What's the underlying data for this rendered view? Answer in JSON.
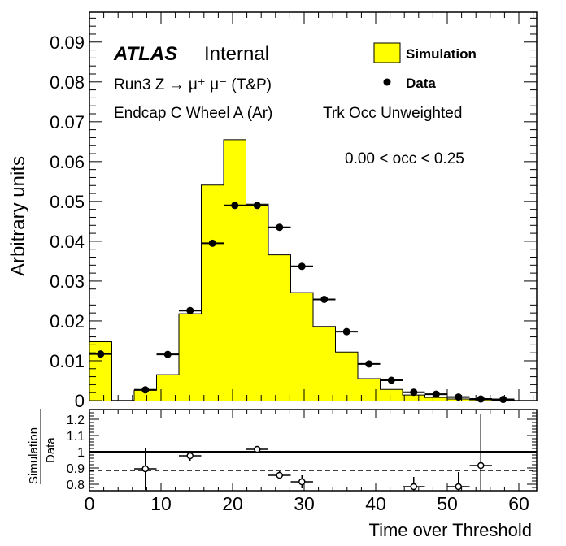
{
  "chart_data": [
    {
      "type": "bar",
      "title": "",
      "labels": {
        "atlas": "ATLAS",
        "internal": "Internal",
        "line1": "Run3 Z → μ⁺ μ⁻ (T&P)",
        "line2": "Endcap C Wheel A (Ar)",
        "line3": "Trk Occ Unweighted",
        "occ_range": "0.00 < occ < 0.25"
      },
      "ylabel": "Arbitrary units",
      "xlim": [
        0,
        62.5
      ],
      "ylim": [
        0,
        0.0975
      ],
      "yticks": [
        0,
        0.01,
        0.02,
        0.03,
        0.04,
        0.05,
        0.06,
        0.07,
        0.08,
        0.09
      ],
      "ytick_labels": [
        "0",
        "0.01",
        "0.02",
        "0.03",
        "0.04",
        "0.05",
        "0.06",
        "0.07",
        "0.08",
        "0.09"
      ],
      "legend": {
        "placement": "top-right",
        "simulation": "Simulation",
        "data": "Data"
      },
      "colors": {
        "simulation": "#ffff00",
        "data": "#000000"
      },
      "simulation": {
        "name": "Simulation",
        "bin_edges": [
          0,
          3.125,
          6.25,
          9.375,
          12.5,
          15.625,
          18.75,
          21.875,
          25,
          28.125,
          31.25,
          34.375,
          37.5,
          40.625,
          43.75,
          46.875,
          50,
          53.125,
          56.25,
          59.375
        ],
        "values": [
          0.0148,
          0.0,
          0.0026,
          0.0065,
          0.0218,
          0.0541,
          0.0655,
          0.0493,
          0.0366,
          0.0271,
          0.0186,
          0.0122,
          0.0055,
          0.0028,
          0.0014,
          0.0008,
          0.0004,
          0.0002,
          0.0001
        ]
      },
      "data": {
        "name": "Data",
        "x": [
          1.5625,
          7.8125,
          10.9375,
          14.0625,
          17.1875,
          20.3125,
          23.4375,
          26.5625,
          29.6875,
          32.8125,
          35.9375,
          39.0625,
          42.1875,
          45.3125,
          48.4375,
          51.5625,
          54.6875,
          57.8125
        ],
        "y": [
          0.0117,
          0.0027,
          0.0116,
          0.0226,
          0.0395,
          0.049,
          0.049,
          0.0435,
          0.0337,
          0.0254,
          0.0173,
          0.0092,
          0.0051,
          0.0021,
          0.0016,
          0.0009,
          0.0004,
          0.0003
        ],
        "xerr": 1.5625
      }
    },
    {
      "type": "scatter",
      "ylabel_num": "Simulation",
      "ylabel_den": "Data",
      "xlabel": "Time over Threshold",
      "xlim": [
        0,
        62.5
      ],
      "ylim": [
        0.76,
        1.26
      ],
      "yticks": [
        0.8,
        0.9,
        1.0,
        1.1,
        1.2
      ],
      "ytick_labels": [
        "0.8",
        "0.9",
        "1",
        "1.1",
        "1.2"
      ],
      "xticks": [
        0,
        10,
        20,
        30,
        40,
        50,
        60
      ],
      "xtick_labels": [
        "0",
        "10",
        "20",
        "30",
        "40",
        "50",
        "60"
      ],
      "reference_lines": [
        {
          "y": 1.0,
          "style": "solid"
        },
        {
          "y": 0.885,
          "style": "dashed"
        }
      ],
      "ratio": {
        "x": [
          7.8125,
          14.0625,
          23.4375,
          26.5625,
          29.6875,
          45.3125,
          51.5625,
          54.6875
        ],
        "y": [
          0.895,
          0.975,
          1.015,
          0.855,
          0.815,
          0.785,
          0.785,
          0.915
        ],
        "yerr": [
          0.13,
          0.03,
          0.02,
          0.025,
          0.04,
          0.06,
          0.09,
          0.32
        ],
        "xerr": 1.5625
      }
    }
  ]
}
